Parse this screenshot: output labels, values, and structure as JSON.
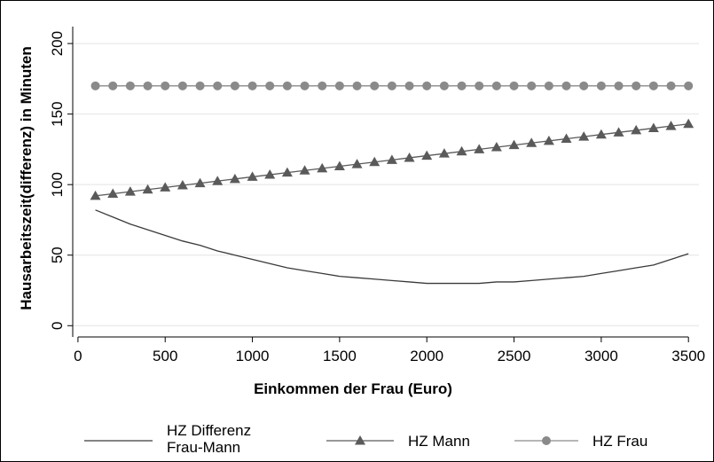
{
  "chart_data": {
    "type": "line",
    "xlabel": "Einkommen der Frau (Euro)",
    "ylabel": "Hausarbeitszeit(differenz) in Minuten",
    "xlim": [
      -30,
      3560
    ],
    "ylim": [
      -8,
      212
    ],
    "xticks": [
      0,
      500,
      1000,
      1500,
      2000,
      2500,
      3000,
      3500
    ],
    "yticks": [
      0,
      50,
      100,
      150,
      200
    ],
    "grid": true,
    "legend_position": "bottom",
    "series": [
      {
        "name": "HZ Differenz Frau-Mann",
        "legend_lines": [
          "HZ Differenz",
          "Frau-Mann"
        ],
        "marker": "none",
        "color": "#3a3a3a",
        "x": [
          100,
          200,
          300,
          400,
          500,
          600,
          700,
          800,
          900,
          1000,
          1100,
          1200,
          1300,
          1400,
          1500,
          1600,
          1700,
          1800,
          1900,
          2000,
          2100,
          2200,
          2300,
          2400,
          2500,
          2600,
          2700,
          2800,
          2900,
          3000,
          3100,
          3200,
          3300,
          3400,
          3500
        ],
        "values": [
          82,
          77,
          72,
          68,
          64,
          60,
          57,
          53,
          50,
          47,
          44,
          41,
          39,
          37,
          35,
          34,
          33,
          32,
          31,
          30,
          30,
          30,
          30,
          31,
          31,
          32,
          33,
          34,
          35,
          37,
          39,
          41,
          43,
          47,
          51
        ]
      },
      {
        "name": "HZ Mann",
        "marker": "triangle",
        "color": "#5a5a5a",
        "x": [
          100,
          200,
          300,
          400,
          500,
          600,
          700,
          800,
          900,
          1000,
          1100,
          1200,
          1300,
          1400,
          1500,
          1600,
          1700,
          1800,
          1900,
          2000,
          2100,
          2200,
          2300,
          2400,
          2500,
          2600,
          2700,
          2800,
          2900,
          3000,
          3100,
          3200,
          3300,
          3400,
          3500
        ],
        "values": [
          92,
          93.5,
          95,
          96.5,
          98,
          99.5,
          101,
          102.5,
          104,
          105.5,
          107,
          108.5,
          110,
          111.5,
          113,
          114.5,
          116,
          117.5,
          119,
          120.5,
          122,
          123.5,
          125,
          126.5,
          128,
          129.5,
          131,
          132.5,
          134,
          135.5,
          137,
          138.5,
          140,
          141.5,
          143
        ]
      },
      {
        "name": "HZ Frau",
        "marker": "circle",
        "color": "#8a8a8a",
        "x": [
          100,
          200,
          300,
          400,
          500,
          600,
          700,
          800,
          900,
          1000,
          1100,
          1200,
          1300,
          1400,
          1500,
          1600,
          1700,
          1800,
          1900,
          2000,
          2100,
          2200,
          2300,
          2400,
          2500,
          2600,
          2700,
          2800,
          2900,
          3000,
          3100,
          3200,
          3300,
          3400,
          3500
        ],
        "values": [
          170,
          170,
          170,
          170,
          170,
          170,
          170,
          170,
          170,
          170,
          170,
          170,
          170,
          170,
          170,
          170,
          170,
          170,
          170,
          170,
          170,
          170,
          170,
          170,
          170,
          170,
          170,
          170,
          170,
          170,
          170,
          170,
          170,
          170,
          170
        ]
      }
    ]
  }
}
